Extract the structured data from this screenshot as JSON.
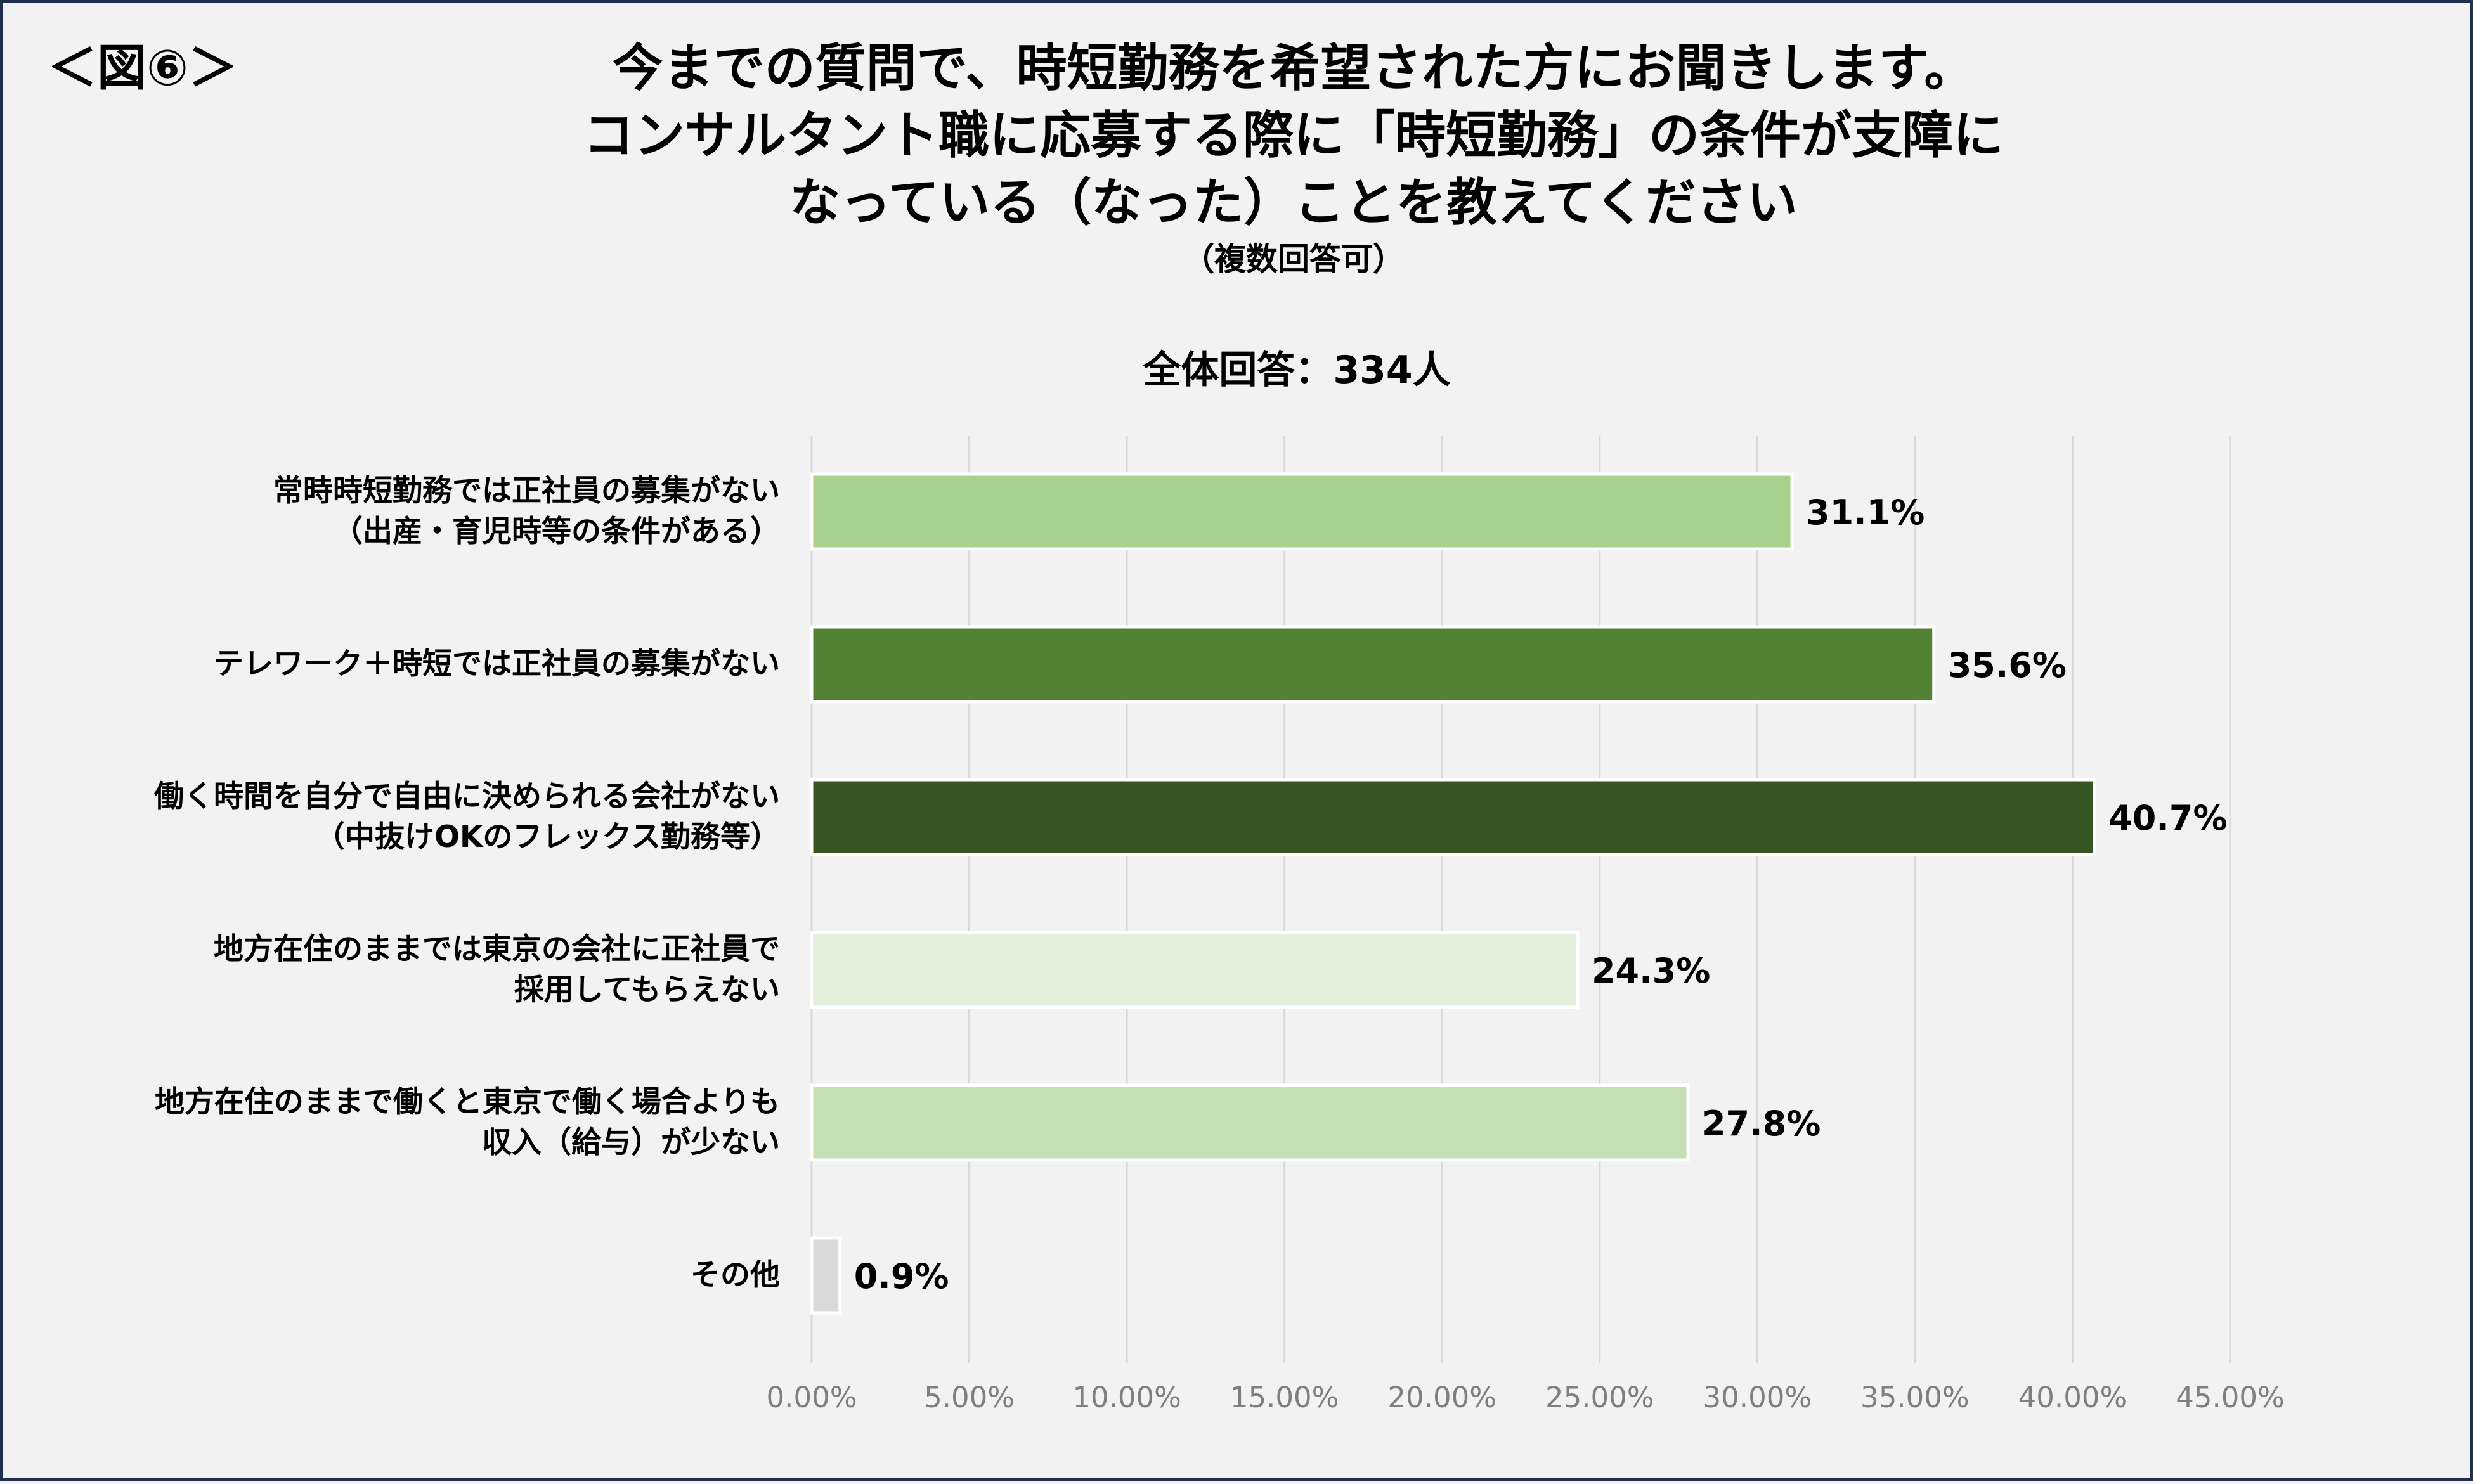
{
  "figure_label": "＜図⑥＞",
  "title_lines": [
    "今までの質問で、時短勤務を希望された方にお聞きします。",
    "コンサルタント職に応募する際に「時短勤務」の条件が支障に",
    "なっている（なった）ことを教えてください"
  ],
  "title_note": "（複数回答可）",
  "total_label": "全体回答：334人",
  "colors": {
    "background": "#f2f2f2",
    "border": "#1f2f4d",
    "gridline": "#d9d9d9",
    "tick_text": "#7f7f7f"
  },
  "chart_data": {
    "type": "bar",
    "orientation": "horizontal",
    "categories": [
      [
        "常時時短勤務では正社員の募集がない",
        "（出産・育児時等の条件がある）"
      ],
      [
        "テレワーク＋時短では正社員の募集がない"
      ],
      [
        "働く時間を自分で自由に決められる会社がない",
        "（中抜けOKのフレックス勤務等）"
      ],
      [
        "地方在住のままでは東京の会社に正社員で",
        "採用してもらえない"
      ],
      [
        "地方在住のままで働くと東京で働く場合よりも",
        "収入（給与）が少ない"
      ],
      [
        "その他"
      ]
    ],
    "values": [
      31.1,
      35.6,
      40.7,
      24.3,
      27.8,
      0.9
    ],
    "data_labels": [
      "31.1%",
      "35.6%",
      "40.7%",
      "24.3%",
      "27.8%",
      "0.9%"
    ],
    "bar_colors": [
      "#a9d18e",
      "#548235",
      "#375623",
      "#e2efda",
      "#c5e0b4",
      "#d9d9d9"
    ],
    "xlim": [
      0,
      45
    ],
    "xticks": [
      0,
      5,
      10,
      15,
      20,
      25,
      30,
      35,
      40,
      45
    ],
    "xtick_labels": [
      "0.00%",
      "5.00%",
      "10.00%",
      "15.00%",
      "20.00%",
      "25.00%",
      "30.00%",
      "35.00%",
      "40.00%",
      "45.00%"
    ],
    "grid": true,
    "legend": "none"
  }
}
